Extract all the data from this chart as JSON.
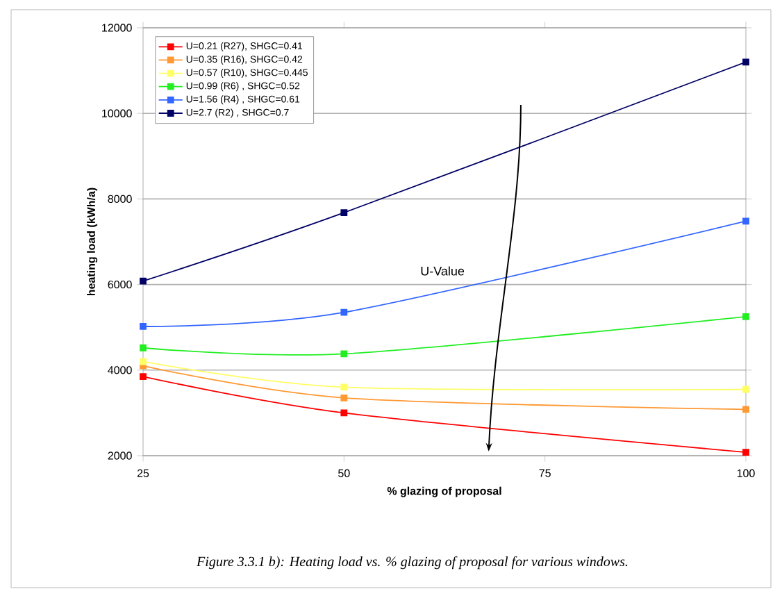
{
  "chart_data": {
    "type": "line",
    "x": [
      25,
      50,
      100
    ],
    "series": [
      {
        "name": "U=0.21 (R27), SHGC=0.41",
        "color": "#ff0000",
        "values": [
          3850,
          3000,
          2080
        ]
      },
      {
        "name": "U=0.35 (R16), SHGC=0.42",
        "color": "#ff9933",
        "values": [
          4100,
          3350,
          3080
        ]
      },
      {
        "name": "U=0.57 (R10), SHGC=0.445",
        "color": "#ffff66",
        "values": [
          4200,
          3600,
          3550
        ]
      },
      {
        "name": "U=0.99 (R6) , SHGC=0.52",
        "color": "#22ee22",
        "values": [
          4520,
          4380,
          5250
        ]
      },
      {
        "name": "U=1.56 (R4) , SHGC=0.61",
        "color": "#3366ff",
        "values": [
          5020,
          5350,
          7480
        ]
      },
      {
        "name": "U=2.7 (R2) , SHGC=0.7",
        "color": "#000066",
        "values": [
          6080,
          7680,
          11200
        ]
      }
    ],
    "xlabel": "% glazing of proposal",
    "ylabel": "heating load (kWh/a)",
    "xlim": [
      25,
      100
    ],
    "xticks": [
      25,
      50,
      75,
      100
    ],
    "ylim": [
      2000,
      12000
    ],
    "yticks": [
      2000,
      4000,
      6000,
      8000,
      10000,
      12000
    ],
    "grid": "y",
    "legend": "top left",
    "marker": "square",
    "annotations": [
      "U-Value",
      "Figure 3.3.1 b): Heating load vs. % glazing of proposal for various windows."
    ]
  }
}
